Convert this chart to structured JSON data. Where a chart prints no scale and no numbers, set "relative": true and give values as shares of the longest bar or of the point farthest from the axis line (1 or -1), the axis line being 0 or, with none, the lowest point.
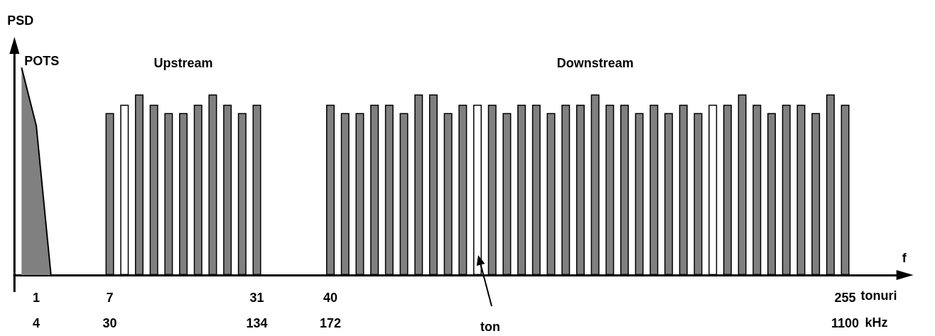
{
  "chart_data": {
    "type": "bar",
    "relative": true,
    "xlabel": "f",
    "ylabel": "PSD",
    "categories": [
      null,
      "1\n4",
      null,
      null,
      null,
      null,
      "7\n30",
      null,
      null,
      null,
      null,
      null,
      null,
      null,
      null,
      null,
      "31\n134",
      null,
      null,
      null,
      null,
      "40\n172",
      null,
      null,
      null,
      null,
      null,
      null,
      null,
      null,
      null,
      null,
      null,
      null,
      null,
      null,
      null,
      null,
      null,
      null,
      null,
      null,
      null,
      null,
      null,
      null,
      null,
      null,
      null,
      null,
      null,
      null,
      null,
      null,
      null,
      null,
      "255\n1100",
      null,
      null,
      null
    ],
    "series": [
      {
        "name": "POTS",
        "type": "area",
        "color": "#808080",
        "values": [
          1,
          0.72,
          0,
          null,
          null,
          null,
          null,
          null,
          null,
          null,
          null,
          null,
          null,
          null,
          null,
          null,
          null,
          null,
          null,
          null,
          null,
          null,
          null,
          null,
          null,
          null,
          null,
          null,
          null,
          null,
          null,
          null,
          null,
          null,
          null,
          null,
          null,
          null,
          null,
          null,
          null,
          null,
          null,
          null,
          null,
          null,
          null,
          null,
          null,
          null,
          null,
          null,
          null,
          null,
          null,
          null,
          null,
          null,
          null,
          null
        ]
      },
      {
        "name": "Upstream",
        "type": "bar",
        "color": "#808080",
        "values": [
          null,
          null,
          null,
          null,
          null,
          null,
          0.78,
          0.82,
          0.87,
          0.82,
          0.78,
          0.78,
          0.82,
          0.87,
          0.82,
          0.78,
          0.82,
          null,
          null,
          null,
          null,
          null,
          null,
          null,
          null,
          null,
          null,
          null,
          null,
          null,
          null,
          null,
          null,
          null,
          null,
          null,
          null,
          null,
          null,
          null,
          null,
          null,
          null,
          null,
          null,
          null,
          null,
          null,
          null,
          null,
          null,
          null,
          null,
          null,
          null,
          null,
          null,
          null,
          null,
          null
        ],
        "colors": [
          null,
          null,
          null,
          null,
          null,
          null,
          "#808080",
          "#ffffff",
          "#808080",
          "#808080",
          "#808080",
          "#808080",
          "#808080",
          "#808080",
          "#808080",
          "#808080",
          "#808080",
          null,
          null,
          null,
          null,
          null,
          null,
          null,
          null,
          null,
          null,
          null,
          null,
          null,
          null,
          null,
          null,
          null,
          null,
          null,
          null,
          null,
          null,
          null,
          null,
          null,
          null,
          null,
          null,
          null,
          null,
          null,
          null,
          null,
          null,
          null,
          null,
          null,
          null,
          null,
          null,
          null,
          null,
          null
        ]
      },
      {
        "name": "Downstream",
        "type": "bar",
        "color": "#808080",
        "values": [
          null,
          null,
          null,
          null,
          null,
          null,
          null,
          null,
          null,
          null,
          null,
          null,
          null,
          null,
          null,
          null,
          null,
          null,
          null,
          null,
          null,
          0.82,
          0.78,
          0.78,
          0.82,
          0.82,
          0.78,
          0.87,
          0.87,
          0.78,
          0.82,
          0.82,
          0.82,
          0.78,
          0.82,
          0.82,
          0.78,
          0.82,
          0.82,
          0.87,
          0.82,
          0.82,
          0.78,
          0.82,
          0.78,
          0.82,
          0.78,
          0.82,
          0.82,
          0.87,
          0.82,
          0.78,
          0.82,
          0.82,
          0.78,
          0.87,
          0.82,
          null,
          null,
          null
        ],
        "colors": [
          null,
          null,
          null,
          null,
          null,
          null,
          null,
          null,
          null,
          null,
          null,
          null,
          null,
          null,
          null,
          null,
          null,
          null,
          null,
          null,
          null,
          "#808080",
          "#808080",
          "#808080",
          "#808080",
          "#808080",
          "#808080",
          "#808080",
          "#808080",
          "#808080",
          "#808080",
          "#ffffff",
          "#808080",
          "#808080",
          "#808080",
          "#808080",
          "#808080",
          "#808080",
          "#808080",
          "#808080",
          "#808080",
          "#808080",
          "#808080",
          "#808080",
          "#808080",
          "#808080",
          "#808080",
          "#ffffff",
          "#808080",
          "#808080",
          "#808080",
          "#808080",
          "#808080",
          "#808080",
          "#808080",
          "#808080",
          "#808080",
          null,
          null,
          null
        ]
      }
    ],
    "annotations": [
      "ton",
      "tonuri",
      "kHz"
    ]
  }
}
